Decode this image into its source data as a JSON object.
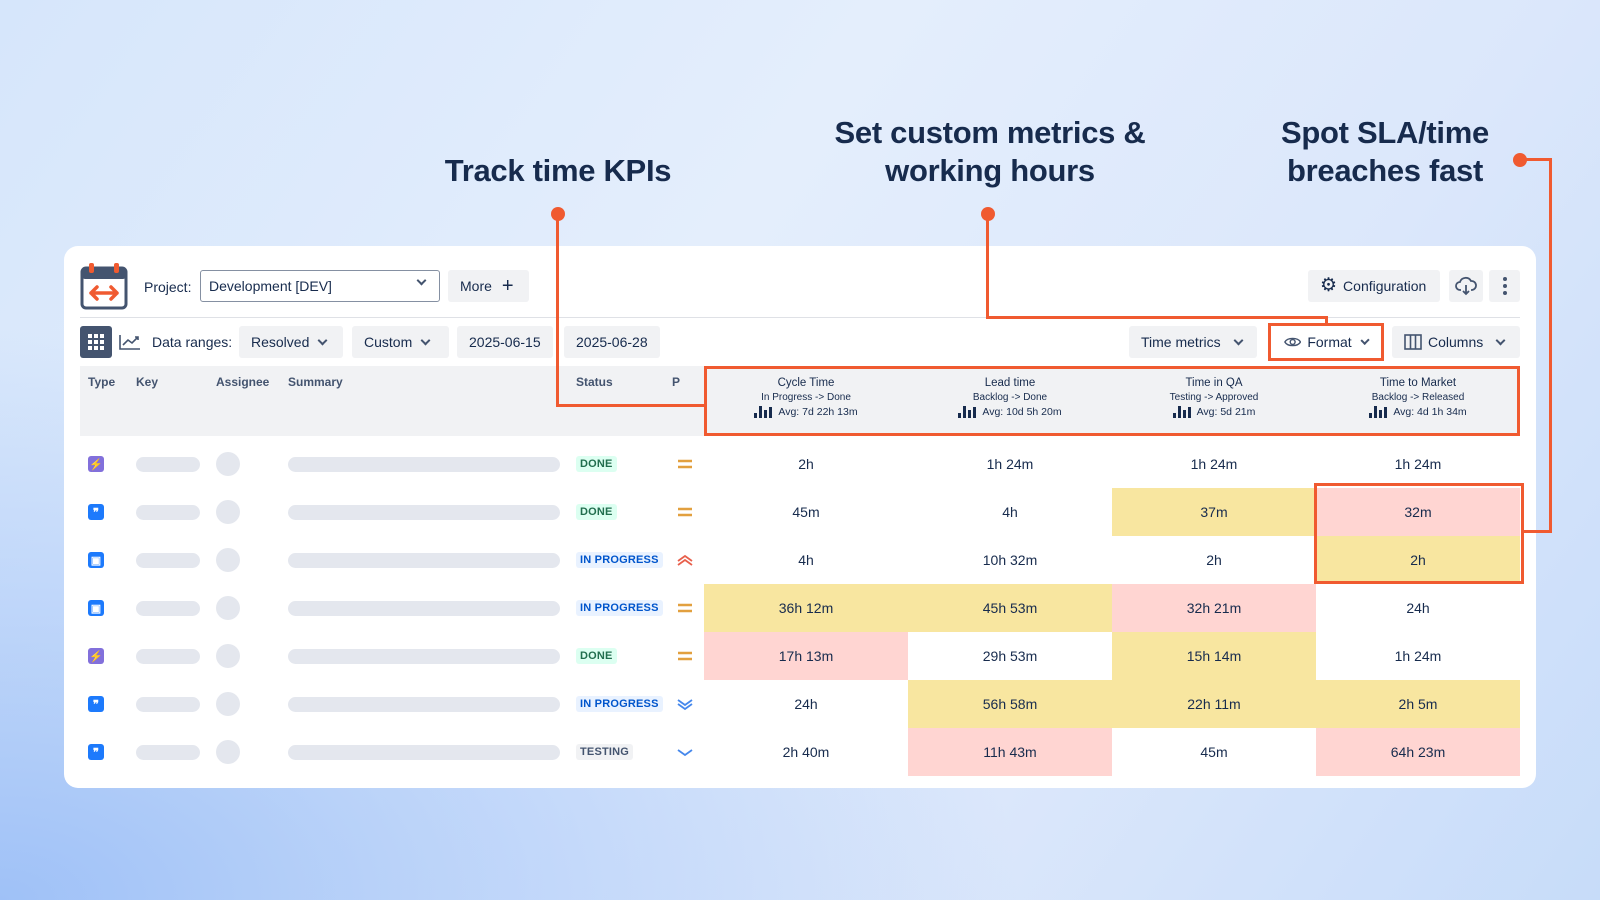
{
  "callouts": {
    "kpi": "Track time KPIs",
    "metrics_line1": "Set custom metrics &",
    "metrics_line2": "working hours",
    "sla_line1": "Spot SLA/time",
    "sla_line2": "breaches fast"
  },
  "toolbar": {
    "project_label": "Project:",
    "project_value": "Development [DEV]",
    "more_label": "More",
    "configuration_label": "Configuration"
  },
  "filters": {
    "data_ranges_label": "Data ranges:",
    "resolved_label": "Resolved",
    "custom_label": "Custom",
    "date_from": "2025-06-15",
    "date_to": "2025-06-28",
    "time_metrics_label": "Time metrics",
    "format_label": "Format",
    "columns_label": "Columns"
  },
  "table": {
    "headers": {
      "type": "Type",
      "key": "Key",
      "assignee": "Assignee",
      "summary": "Summary",
      "status": "Status",
      "priority": "P"
    },
    "metrics": [
      {
        "title": "Cycle Time",
        "transition": "In Progress -> Done",
        "avg": "Avg: 7d 22h 13m"
      },
      {
        "title": "Lead time",
        "transition": "Backlog -> Done",
        "avg": "Avg: 10d 5h 20m"
      },
      {
        "title": "Time in QA",
        "transition": "Testing -> Approved",
        "avg": "Avg: 5d 21m"
      },
      {
        "title": "Time to Market",
        "transition": "Backlog -> Released",
        "avg": "Avg: 4d 1h 34m"
      }
    ],
    "rows": [
      {
        "type_icon": "bolt-icon",
        "status": "DONE",
        "priority_icon": "medium-priority-icon",
        "values": [
          "2h",
          "1h 24m",
          "1h 24m",
          "1h 24m"
        ]
      },
      {
        "type_icon": "quote-icon",
        "status": "DONE",
        "priority_icon": "medium-priority-icon",
        "values": [
          "45m",
          "4h",
          "37m",
          "32m"
        ]
      },
      {
        "type_icon": "screen-icon",
        "status": "IN PROGRESS",
        "priority_icon": "high-priority-icon",
        "values": [
          "4h",
          "10h 32m",
          "2h",
          "2h"
        ]
      },
      {
        "type_icon": "screen-icon",
        "status": "IN PROGRESS",
        "priority_icon": "medium-priority-icon",
        "values": [
          "36h 12m",
          "45h 53m",
          "32h 21m",
          "24h"
        ]
      },
      {
        "type_icon": "bolt-icon",
        "status": "DONE",
        "priority_icon": "medium-priority-icon",
        "values": [
          "17h 13m",
          "29h 53m",
          "15h 14m",
          "1h 24m"
        ]
      },
      {
        "type_icon": "quote-icon",
        "status": "IN PROGRESS",
        "priority_icon": "lowest-priority-icon",
        "values": [
          "24h",
          "56h 58m",
          "22h 11m",
          "2h 5m"
        ]
      },
      {
        "type_icon": "quote-icon",
        "status": "TESTING",
        "priority_icon": "low-priority-icon",
        "values": [
          "2h 40m",
          "11h 43m",
          "45m",
          "64h 23m"
        ]
      }
    ]
  },
  "colors": {
    "accent": "#f05a30",
    "warning_cell": "#f8e6a0",
    "breach_cell": "#ffd5d2",
    "story_icon": "#8270db",
    "task_icon": "#1d7afc"
  }
}
